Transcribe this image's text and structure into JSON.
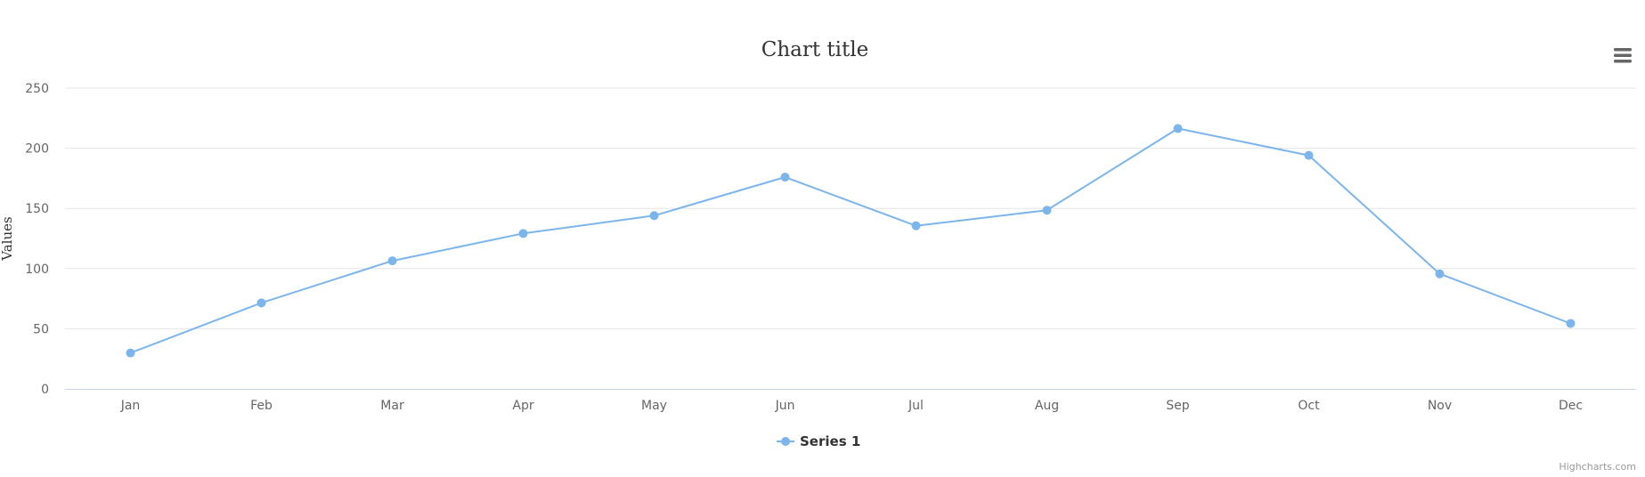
{
  "chart_data": {
    "type": "line",
    "title": "Chart title",
    "xlabel": "",
    "ylabel": "Values",
    "categories": [
      "Jan",
      "Feb",
      "Mar",
      "Apr",
      "May",
      "Jun",
      "Jul",
      "Aug",
      "Sep",
      "Oct",
      "Nov",
      "Dec"
    ],
    "ylim": [
      0,
      250
    ],
    "yticks": [
      0,
      50,
      100,
      150,
      200,
      250
    ],
    "grid": true,
    "legend_position": "bottom-center",
    "series": [
      {
        "name": "Series 1",
        "color": "#7cb5ec",
        "values": [
          29.9,
          71.5,
          106.4,
          129.2,
          144.0,
          176.0,
          135.6,
          148.5,
          216.4,
          194.1,
          95.6,
          54.4
        ]
      }
    ]
  },
  "credits": "Highcharts.com",
  "menu_icon": "hamburger-menu-icon"
}
